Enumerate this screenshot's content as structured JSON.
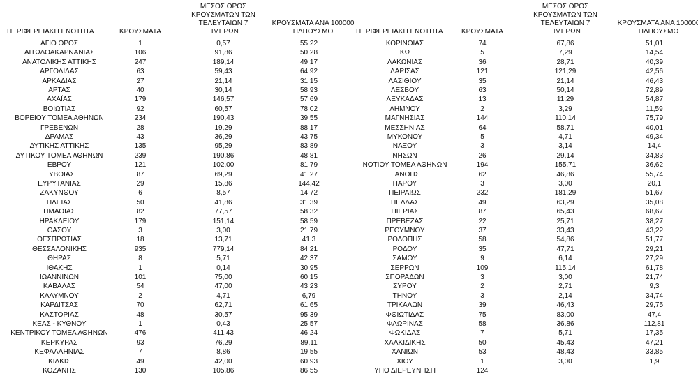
{
  "tables": [
    {
      "header": [
        "ΠΕΡΙΦΕΡΕΙΑΚΗ ΕΝΟΤΗΤΑ",
        "ΚΡΟΥΣΜΑΤΑ",
        "ΜΕΣΟΣ ΟΡΟΣ ΚΡΟΥΣΜΑΤΩΝ ΤΩΝ ΤΕΛΕΥΤΑΙΩΝ 7 ΗΜΕΡΩΝ",
        "ΚΡΟΥΣΜΑΤΑ ΑΝΑ 100000 ΠΛΗΘΥΣΜΟ"
      ],
      "rows": [
        [
          "ΑΓΙΟ ΟΡΟΣ",
          "1",
          "0,57",
          "55,22"
        ],
        [
          "ΑΙΤΩΛΟΑΚΑΡΝΑΝΙΑΣ",
          "106",
          "91,86",
          "50,28"
        ],
        [
          "ΑΝΑΤΟΛΙΚΗΣ ΑΤΤΙΚΗΣ",
          "247",
          "189,14",
          "49,17"
        ],
        [
          "ΑΡΓΟΛΙΔΑΣ",
          "63",
          "59,43",
          "64,92"
        ],
        [
          "ΑΡΚΑΔΙΑΣ",
          "27",
          "21,14",
          "31,15"
        ],
        [
          "ΑΡΤΑΣ",
          "40",
          "30,14",
          "58,93"
        ],
        [
          "ΑΧΑΪΑΣ",
          "179",
          "146,57",
          "57,69"
        ],
        [
          "ΒΟΙΩΤΙΑΣ",
          "92",
          "60,57",
          "78,02"
        ],
        [
          "ΒΟΡΕΙΟΥ ΤΟΜΕΑ ΑΘΗΝΩΝ",
          "234",
          "190,43",
          "39,55"
        ],
        [
          "ΓΡΕΒΕΝΩΝ",
          "28",
          "19,29",
          "88,17"
        ],
        [
          "ΔΡΑΜΑΣ",
          "43",
          "36,29",
          "43,75"
        ],
        [
          "ΔΥΤΙΚΗΣ ΑΤΤΙΚΗΣ",
          "135",
          "95,29",
          "83,89"
        ],
        [
          "ΔΥΤΙΚΟΥ ΤΟΜΕΑ ΑΘΗΝΩΝ",
          "239",
          "190,86",
          "48,81"
        ],
        [
          "ΕΒΡΟΥ",
          "121",
          "102,00",
          "81,79"
        ],
        [
          "ΕΥΒΟΙΑΣ",
          "87",
          "69,29",
          "41,27"
        ],
        [
          "ΕΥΡΥΤΑΝΙΑΣ",
          "29",
          "15,86",
          "144,42"
        ],
        [
          "ΖΑΚΥΝΘΟΥ",
          "6",
          "8,57",
          "14,72"
        ],
        [
          "ΗΛΕΙΑΣ",
          "50",
          "41,86",
          "31,39"
        ],
        [
          "ΗΜΑΘΙΑΣ",
          "82",
          "77,57",
          "58,32"
        ],
        [
          "ΗΡΑΚΛΕΙΟΥ",
          "179",
          "151,14",
          "58,59"
        ],
        [
          "ΘΑΣΟΥ",
          "3",
          "3,00",
          "21,79"
        ],
        [
          "ΘΕΣΠΡΩΤΙΑΣ",
          "18",
          "13,71",
          "41,3"
        ],
        [
          "ΘΕΣΣΑΛΟΝΙΚΗΣ",
          "935",
          "779,14",
          "84,21"
        ],
        [
          "ΘΗΡΑΣ",
          "8",
          "5,71",
          "42,37"
        ],
        [
          "ΙΘΑΚΗΣ",
          "1",
          "0,14",
          "30,95"
        ],
        [
          "ΙΩΑΝΝΙΝΩΝ",
          "101",
          "75,00",
          "60,15"
        ],
        [
          "ΚΑΒΑΛΑΣ",
          "54",
          "47,00",
          "43,23"
        ],
        [
          "ΚΑΛΥΜΝΟΥ",
          "2",
          "4,71",
          "6,79"
        ],
        [
          "ΚΑΡΔΙΤΣΑΣ",
          "70",
          "62,71",
          "61,65"
        ],
        [
          "ΚΑΣΤΟΡΙΑΣ",
          "48",
          "30,57",
          "95,39"
        ],
        [
          "ΚΕΑΣ - ΚΥΘΝΟΥ",
          "1",
          "0,43",
          "25,57"
        ],
        [
          "ΚΕΝΤΡΙΚΟΥ ΤΟΜΕΑ ΑΘΗΝΩΝ",
          "476",
          "411,43",
          "46,24"
        ],
        [
          "ΚΕΡΚΥΡΑΣ",
          "93",
          "76,29",
          "89,11"
        ],
        [
          "ΚΕΦΑΛΛΗΝΙΑΣ",
          "7",
          "8,86",
          "19,55"
        ],
        [
          "ΚΙΛΚΙΣ",
          "49",
          "42,00",
          "60,93"
        ],
        [
          "ΚΟΖΑΝΗΣ",
          "130",
          "105,86",
          "86,55"
        ]
      ]
    },
    {
      "header": [
        "ΠΕΡΙΦΕΡΕΙΑΚΗ ΕΝΟΤΗΤΑ",
        "ΚΡΟΥΣΜΑΤΑ",
        "ΜΕΣΟΣ ΟΡΟΣ ΚΡΟΥΣΜΑΤΩΝ ΤΩΝ ΤΕΛΕΥΤΑΙΩΝ 7 ΗΜΕΡΩΝ",
        "ΚΡΟΥΣΜΑΤΑ ΑΝΑ 100000 ΠΛΗΘΥΣΜΟ"
      ],
      "rows": [
        [
          "ΚΟΡΙΝΘΙΑΣ",
          "74",
          "67,86",
          "51,01"
        ],
        [
          "ΚΩ",
          "5",
          "7,29",
          "14,54"
        ],
        [
          "ΛΑΚΩΝΙΑΣ",
          "36",
          "28,71",
          "40,39"
        ],
        [
          "ΛΑΡΙΣΑΣ",
          "121",
          "121,29",
          "42,56"
        ],
        [
          "ΛΑΣΙΘΙΟΥ",
          "35",
          "21,14",
          "46,43"
        ],
        [
          "ΛΕΣΒΟΥ",
          "63",
          "50,14",
          "72,89"
        ],
        [
          "ΛΕΥΚΑΔΑΣ",
          "13",
          "11,29",
          "54,87"
        ],
        [
          "ΛΗΜΝΟΥ",
          "2",
          "3,29",
          "11,59"
        ],
        [
          "ΜΑΓΝΗΣΙΑΣ",
          "144",
          "110,14",
          "75,79"
        ],
        [
          "ΜΕΣΣΗΝΙΑΣ",
          "64",
          "58,71",
          "40,01"
        ],
        [
          "ΜΥΚΟΝΟΥ",
          "5",
          "4,71",
          "49,34"
        ],
        [
          "ΝΑΞΟΥ",
          "3",
          "3,14",
          "14,4"
        ],
        [
          "ΝΗΣΩΝ",
          "26",
          "29,14",
          "34,83"
        ],
        [
          "ΝΟΤΙΟΥ ΤΟΜΕΑ ΑΘΗΝΩΝ",
          "194",
          "155,71",
          "36,62"
        ],
        [
          "ΞΑΝΘΗΣ",
          "62",
          "46,86",
          "55,74"
        ],
        [
          "ΠΑΡΟΥ",
          "3",
          "3,00",
          "20,1"
        ],
        [
          "ΠΕΙΡΑΙΩΣ",
          "232",
          "181,29",
          "51,67"
        ],
        [
          "ΠΕΛΛΑΣ",
          "49",
          "63,29",
          "35,08"
        ],
        [
          "ΠΙΕΡΙΑΣ",
          "87",
          "65,43",
          "68,67"
        ],
        [
          "ΠΡΕΒΕΖΑΣ",
          "22",
          "25,71",
          "38,27"
        ],
        [
          "ΡΕΘΥΜΝΟΥ",
          "37",
          "33,43",
          "43,22"
        ],
        [
          "ΡΟΔΟΠΗΣ",
          "58",
          "54,86",
          "51,77"
        ],
        [
          "ΡΟΔΟΥ",
          "35",
          "47,71",
          "29,21"
        ],
        [
          "ΣΑΜΟΥ",
          "9",
          "6,14",
          "27,29"
        ],
        [
          "ΣΕΡΡΩΝ",
          "109",
          "115,14",
          "61,78"
        ],
        [
          "ΣΠΟΡΑΔΩΝ",
          "3",
          "3,00",
          "21,74"
        ],
        [
          "ΣΥΡΟΥ",
          "2",
          "2,71",
          "9,3"
        ],
        [
          "ΤΗΝΟΥ",
          "3",
          "2,14",
          "34,74"
        ],
        [
          "ΤΡΙΚΑΛΩΝ",
          "39",
          "46,43",
          "29,75"
        ],
        [
          "ΦΘΙΩΤΙΔΑΣ",
          "75",
          "83,00",
          "47,4"
        ],
        [
          "ΦΛΩΡΙΝΑΣ",
          "58",
          "36,86",
          "112,81"
        ],
        [
          "ΦΩΚΙΔΑΣ",
          "7",
          "5,71",
          "17,35"
        ],
        [
          "ΧΑΛΚΙΔΙΚΗΣ",
          "50",
          "45,43",
          "47,21"
        ],
        [
          "ΧΑΝΙΩΝ",
          "53",
          "48,43",
          "33,85"
        ],
        [
          "ΧΙΟΥ",
          "1",
          "3,00",
          "1,9"
        ],
        [
          "ΥΠΟ ΔΙΕΡΕΥΝΗΣΗ",
          "124"
        ]
      ]
    }
  ]
}
